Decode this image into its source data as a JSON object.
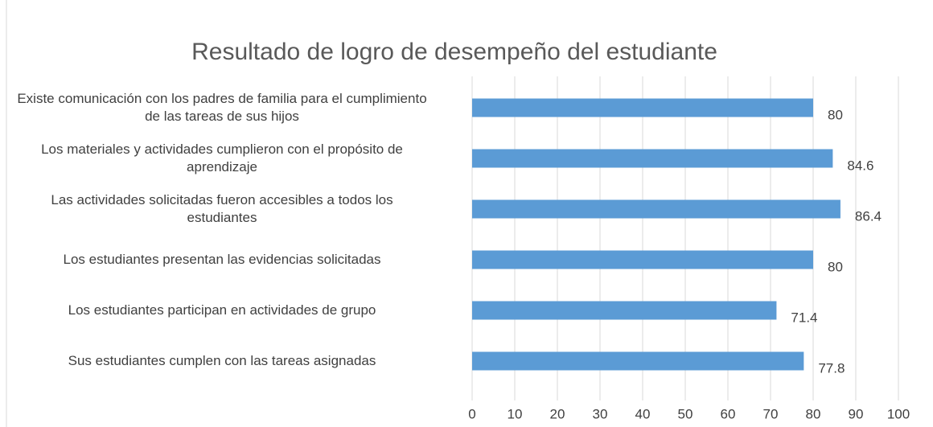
{
  "chart_data": {
    "type": "bar",
    "orientation": "horizontal",
    "title": "Resultado de logro de desempeño del estudiante",
    "categories": [
      "Existe comunicación con los padres de familia para el cumplimiento de las tareas de sus hijos",
      "Los materiales y actividades cumplieron con el propósito de aprendizaje",
      "Las actividades solicitadas fueron accesibles a todos los estudiantes",
      "Los estudiantes presentan las evidencias solicitadas",
      "Los estudiantes participan en actividades de grupo",
      "Sus estudiantes cumplen con las tareas asignadas"
    ],
    "values": [
      80,
      84.6,
      86.4,
      80,
      71.4,
      77.8
    ],
    "color": "#5b9bd5",
    "xlim": [
      0,
      100
    ],
    "xticks": [
      0,
      10,
      20,
      30,
      40,
      50,
      60,
      70,
      80,
      90,
      100
    ],
    "grid": true
  }
}
